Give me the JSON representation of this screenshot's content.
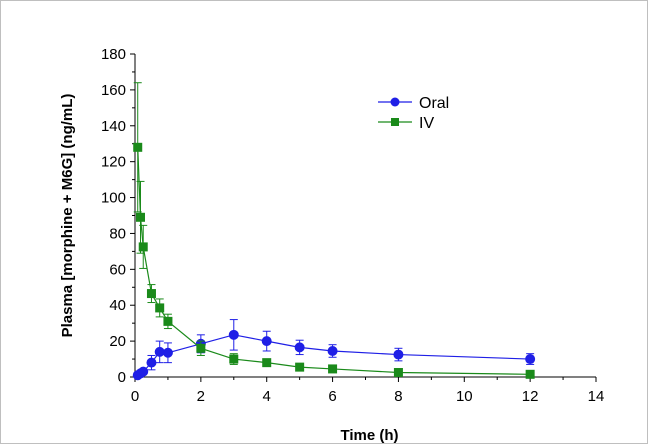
{
  "chart_data": {
    "type": "line",
    "xlabel": "Time (h)",
    "ylabel": "Plasma [morphine + M6G] (ng/mL)",
    "xlim": [
      0,
      14
    ],
    "ylim": [
      0,
      180
    ],
    "xticks": [
      0,
      2,
      4,
      6,
      8,
      10,
      12,
      14
    ],
    "yticks": [
      0,
      20,
      40,
      60,
      80,
      100,
      120,
      140,
      160,
      180
    ],
    "grid": false,
    "legend_position": "top-right",
    "series": [
      {
        "name": "Oral",
        "color": "#1f1fe6",
        "marker": "circle",
        "x": [
          0.083,
          0.167,
          0.25,
          0.5,
          0.75,
          1,
          2,
          3,
          4,
          5,
          6,
          8,
          12
        ],
        "y": [
          1,
          2,
          3,
          8,
          14,
          13.5,
          18.5,
          23.5,
          20,
          16.5,
          14.5,
          12.5,
          10
        ],
        "err": [
          0.6,
          1,
          1.2,
          4,
          6,
          5.5,
          5,
          8.5,
          5.5,
          4,
          3.5,
          3.5,
          3
        ]
      },
      {
        "name": "IV",
        "color": "#1a8a1a",
        "marker": "square",
        "x": [
          0.083,
          0.167,
          0.25,
          0.5,
          0.75,
          1,
          2,
          3,
          4,
          5,
          6,
          8,
          12
        ],
        "y": [
          128,
          89,
          72.5,
          46.5,
          38.5,
          31,
          16,
          10,
          8,
          5.5,
          4.5,
          2.5,
          1.5
        ],
        "err": [
          36,
          20,
          12,
          5,
          5,
          4,
          4,
          3,
          2,
          1.5,
          1.5,
          1,
          1
        ]
      }
    ]
  }
}
